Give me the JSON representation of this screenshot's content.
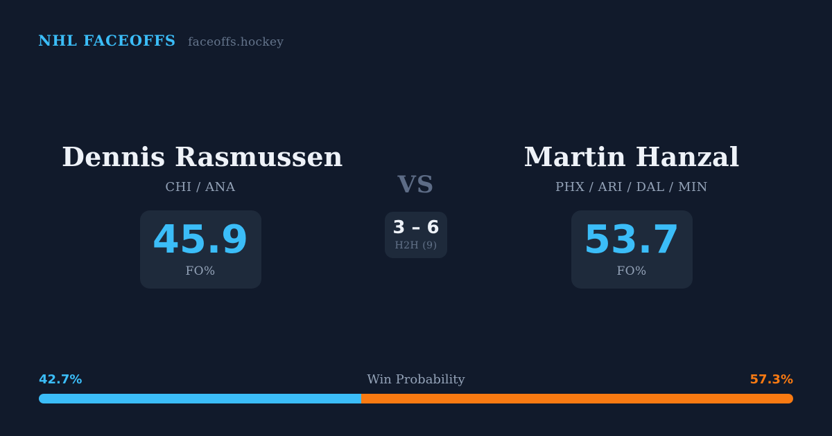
{
  "header": {
    "brand": "NHL FACEOFFS",
    "site": "faceoffs.hockey"
  },
  "players": {
    "left": {
      "name": "Dennis Rasmussen",
      "teams": "CHI / ANA",
      "fo_pct": "45.9",
      "fo_label": "FO%"
    },
    "right": {
      "name": "Martin Hanzal",
      "teams": "PHX / ARI / DAL / MIN",
      "fo_pct": "53.7",
      "fo_label": "FO%"
    }
  },
  "matchup": {
    "vs_label": "VS",
    "h2h_record": "3 – 6",
    "h2h_label": "H2H (9)"
  },
  "win_probability": {
    "title": "Win Probability",
    "left_label": "42.7%",
    "right_label": "57.3%",
    "left_value": 42.7,
    "right_value": 57.3
  },
  "chart_data": {
    "type": "bar",
    "title": "Win Probability",
    "categories": [
      "Dennis Rasmussen",
      "Martin Hanzal"
    ],
    "values": [
      42.7,
      57.3
    ],
    "xlabel": "",
    "ylabel": "Win Probability (%)",
    "ylim": [
      0,
      100
    ],
    "legend_position": "none",
    "notes": "Single stacked horizontal bar; left segment blue (42.7%), right segment orange (57.3%). Supporting stats: FO% 45.9 vs 53.7, head-to-head record 3–6 over 9 meetings."
  },
  "colors": {
    "background": "#111a2b",
    "panel": "#1e2a3b",
    "accent_blue": "#3bbdf8",
    "accent_orange": "#f97a12",
    "text_white": "#eef2f8",
    "text_gray": "#94a3b8",
    "text_dim": "#64748b",
    "vs_color": "#5d6c86"
  }
}
